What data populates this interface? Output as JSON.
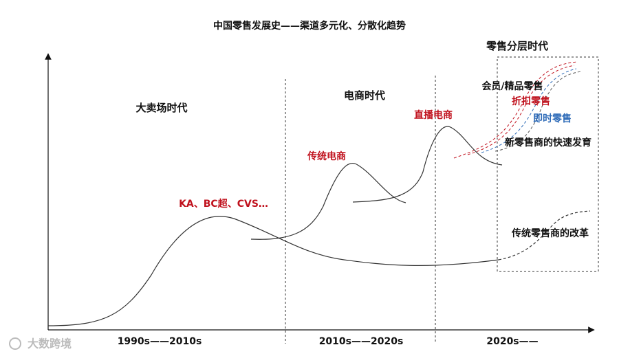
{
  "title": "中国零售发展史——渠道多元化、分散化趋势",
  "eras": {
    "stratified": "零售分层时代",
    "hypermarket": "大卖场时代",
    "ecommerce": "电商时代"
  },
  "labels": {
    "live_commerce": "直播电商",
    "traditional_ecommerce": "传统电商",
    "ka": "KA、BC超、CVS…",
    "membership": "会员/精品零售",
    "discount": "折扣零售",
    "instant": "即时零售",
    "new_retailers": "新零售商的快速发育",
    "traditional_reform": "传统零售商的改革"
  },
  "x_labels": [
    "1990s——2010s",
    "2010s——2020s",
    "2020s——"
  ],
  "watermark": "大数跨境"
}
